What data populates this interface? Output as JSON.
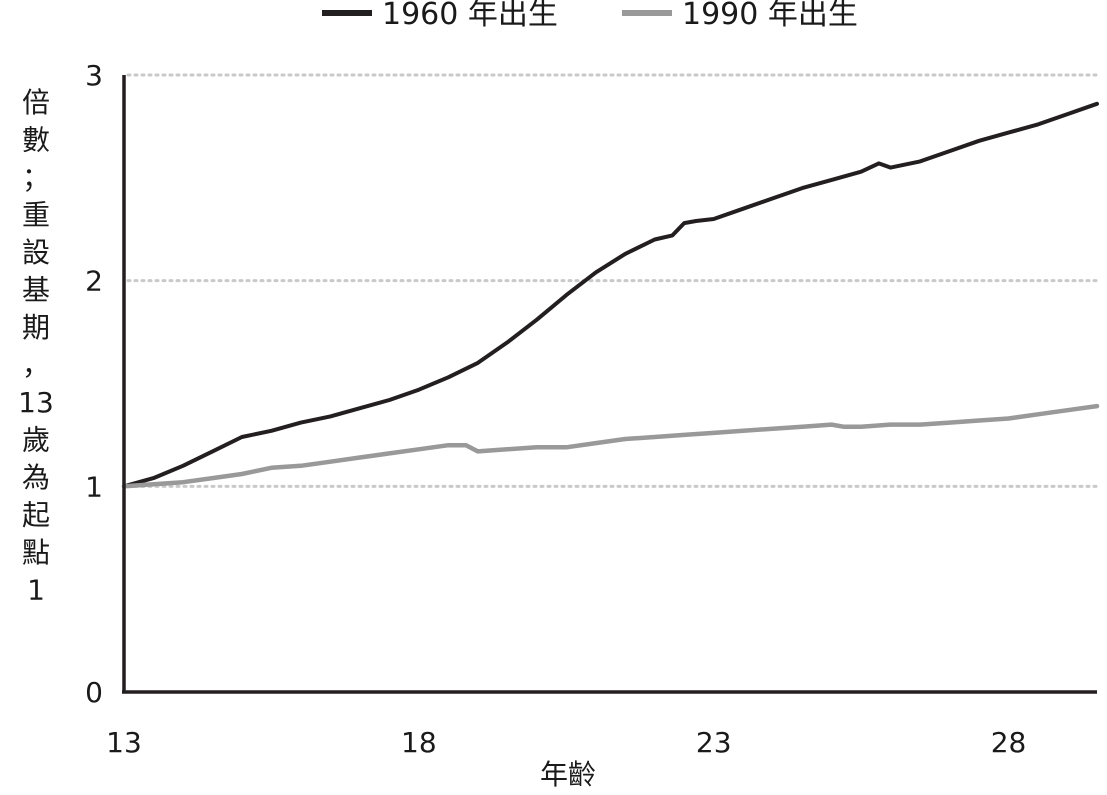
{
  "chart_data": {
    "type": "line",
    "xlabel": "年齡",
    "ylabel": "倍數；重設基期，13歲為起點1",
    "xlim": [
      13,
      29.5
    ],
    "ylim": [
      0,
      3
    ],
    "x_ticks": [
      "13",
      "18",
      "23",
      "28"
    ],
    "y_ticks": [
      "0",
      "1",
      "2",
      "3"
    ],
    "grid": "horizontal dotted at 1, 2, 3",
    "legend_position": "top",
    "series": [
      {
        "name": "1960 年出生",
        "color": "#231f20",
        "x": [
          13,
          13.5,
          14,
          14.5,
          15,
          15.5,
          16,
          16.5,
          17,
          17.5,
          18,
          18.5,
          19,
          19.5,
          20,
          20.5,
          21,
          21.5,
          22,
          22.3,
          22.5,
          22.7,
          23,
          23.5,
          24,
          24.5,
          25,
          25.5,
          25.8,
          26,
          26.5,
          27,
          27.5,
          28,
          28.5,
          29,
          29.5
        ],
        "values": [
          1.0,
          1.04,
          1.1,
          1.17,
          1.24,
          1.27,
          1.31,
          1.34,
          1.38,
          1.42,
          1.47,
          1.53,
          1.6,
          1.7,
          1.81,
          1.93,
          2.04,
          2.13,
          2.2,
          2.22,
          2.28,
          2.29,
          2.3,
          2.35,
          2.4,
          2.45,
          2.49,
          2.53,
          2.57,
          2.55,
          2.58,
          2.63,
          2.68,
          2.72,
          2.76,
          2.81,
          2.86
        ]
      },
      {
        "name": "1990 年出生",
        "color": "#999999",
        "x": [
          13,
          13.5,
          14,
          14.5,
          15,
          15.5,
          16,
          16.5,
          17,
          17.5,
          18,
          18.5,
          18.8,
          19,
          19.5,
          20,
          20.5,
          21,
          21.5,
          22,
          22.5,
          23,
          23.5,
          24,
          24.5,
          25,
          25.2,
          25.5,
          26,
          26.5,
          27,
          27.5,
          28,
          28.5,
          29,
          29.5
        ],
        "values": [
          1.0,
          1.01,
          1.02,
          1.04,
          1.06,
          1.09,
          1.1,
          1.12,
          1.14,
          1.16,
          1.18,
          1.2,
          1.2,
          1.17,
          1.18,
          1.19,
          1.19,
          1.21,
          1.23,
          1.24,
          1.25,
          1.26,
          1.27,
          1.28,
          1.29,
          1.3,
          1.29,
          1.29,
          1.3,
          1.3,
          1.31,
          1.32,
          1.33,
          1.35,
          1.37,
          1.39
        ]
      }
    ]
  }
}
